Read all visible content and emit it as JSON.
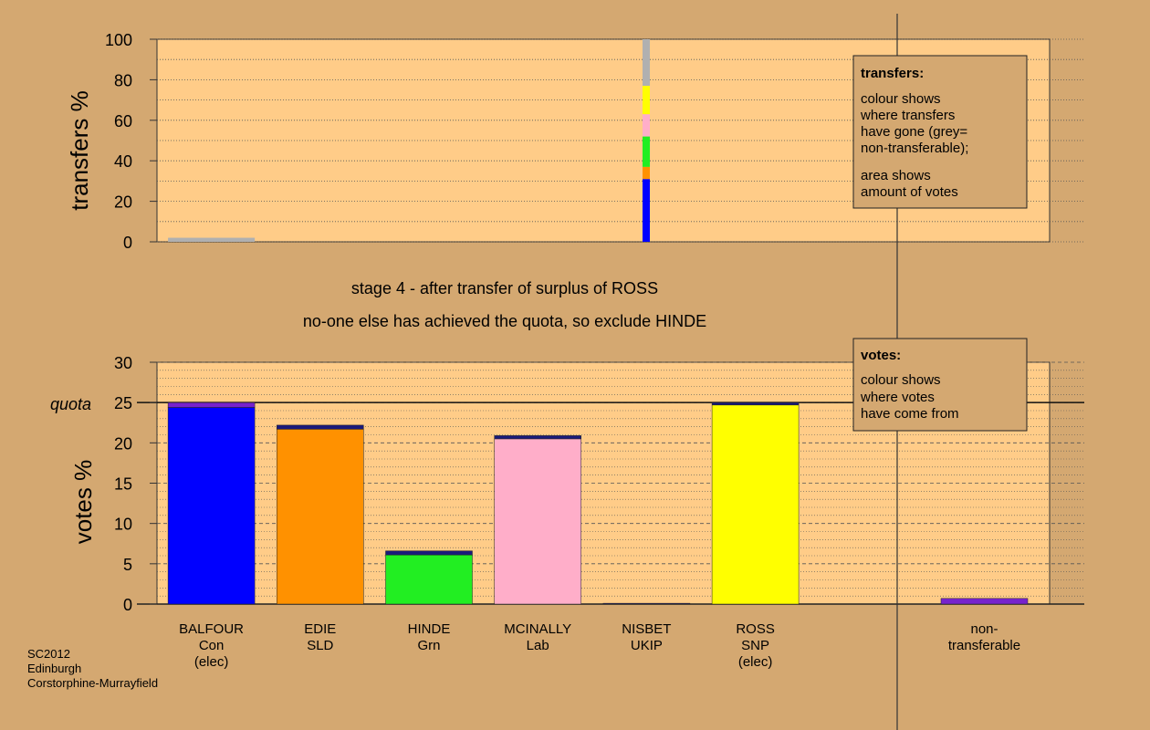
{
  "chart_data": [
    {
      "type": "bar",
      "ylabel": "transfers %",
      "ylim": [
        0,
        100
      ],
      "yticks": [
        0,
        20,
        40,
        60,
        80,
        100
      ],
      "colors": {
        "blue": "#0000ff",
        "orange": "#ff9100",
        "green": "#22ee22",
        "pink": "#ffaec9",
        "yellow": "#ffff00",
        "grey": "#b0b0b0"
      },
      "bars": [
        {
          "slot": 0,
          "segments": [
            {
              "color": "grey",
              "value": 2
            }
          ]
        },
        {
          "slot": 4.5,
          "segments": [
            {
              "color": "blue",
              "value": 31
            },
            {
              "color": "orange",
              "value": 6
            },
            {
              "color": "green",
              "value": 15
            },
            {
              "color": "pink",
              "value": 11
            },
            {
              "color": "yellow",
              "value": 14
            },
            {
              "color": "grey",
              "value": 23
            }
          ]
        }
      ],
      "legend": {
        "title": "transfers:",
        "lines1": [
          "colour shows",
          "where transfers",
          "have gone (grey=",
          "non-transferable);"
        ],
        "lines2": [
          "area shows",
          "amount of votes"
        ]
      }
    },
    {
      "type": "bar",
      "ylabel": "votes %",
      "ylim": [
        0,
        30
      ],
      "yticks": [
        0,
        5,
        10,
        15,
        20,
        25,
        30
      ],
      "quota": {
        "value": 25,
        "label": "quota"
      },
      "colors": {
        "blue": "#0000ff",
        "orange": "#ff9100",
        "green": "#22ee22",
        "pink": "#ffaec9",
        "yellow": "#ffff00",
        "navy": "#1a1a7a",
        "purple": "#7722cc"
      },
      "candidates": [
        {
          "name": "BALFOUR",
          "party": "Con",
          "status": "(elec)",
          "segments": [
            {
              "color": "blue",
              "value": 24.4
            },
            {
              "color": "purple",
              "value": 0.6
            }
          ]
        },
        {
          "name": "EDIE",
          "party": "SLD",
          "status": "",
          "segments": [
            {
              "color": "orange",
              "value": 21.7
            },
            {
              "color": "navy",
              "value": 0.5
            }
          ]
        },
        {
          "name": "HINDE",
          "party": "Grn",
          "status": "",
          "segments": [
            {
              "color": "green",
              "value": 6.1
            },
            {
              "color": "navy",
              "value": 0.5
            }
          ]
        },
        {
          "name": "MCINALLY",
          "party": "Lab",
          "status": "",
          "segments": [
            {
              "color": "pink",
              "value": 20.5
            },
            {
              "color": "navy",
              "value": 0.4
            }
          ]
        },
        {
          "name": "NISBET",
          "party": "UKIP",
          "status": "",
          "segments": [
            {
              "color": "navy",
              "value": 0.1
            }
          ]
        },
        {
          "name": "ROSS",
          "party": "SNP",
          "status": "(elec)",
          "segments": [
            {
              "color": "yellow",
              "value": 24.7
            },
            {
              "color": "navy",
              "value": 0.3
            }
          ]
        }
      ],
      "nontransferable": {
        "line1": "non-",
        "line2": "transferable",
        "value": 0.7,
        "color": "purple"
      },
      "legend": {
        "title": "votes:",
        "lines": [
          "colour shows",
          "where votes",
          "have come from"
        ]
      }
    }
  ],
  "captions": {
    "line1": "stage 4 - after transfer of surplus of ROSS",
    "line2": "no-one else has achieved the quota, so exclude HINDE"
  },
  "footer": {
    "line1": "SC2012",
    "line2": "Edinburgh",
    "line3": "Corstorphine-Murrayfield"
  }
}
